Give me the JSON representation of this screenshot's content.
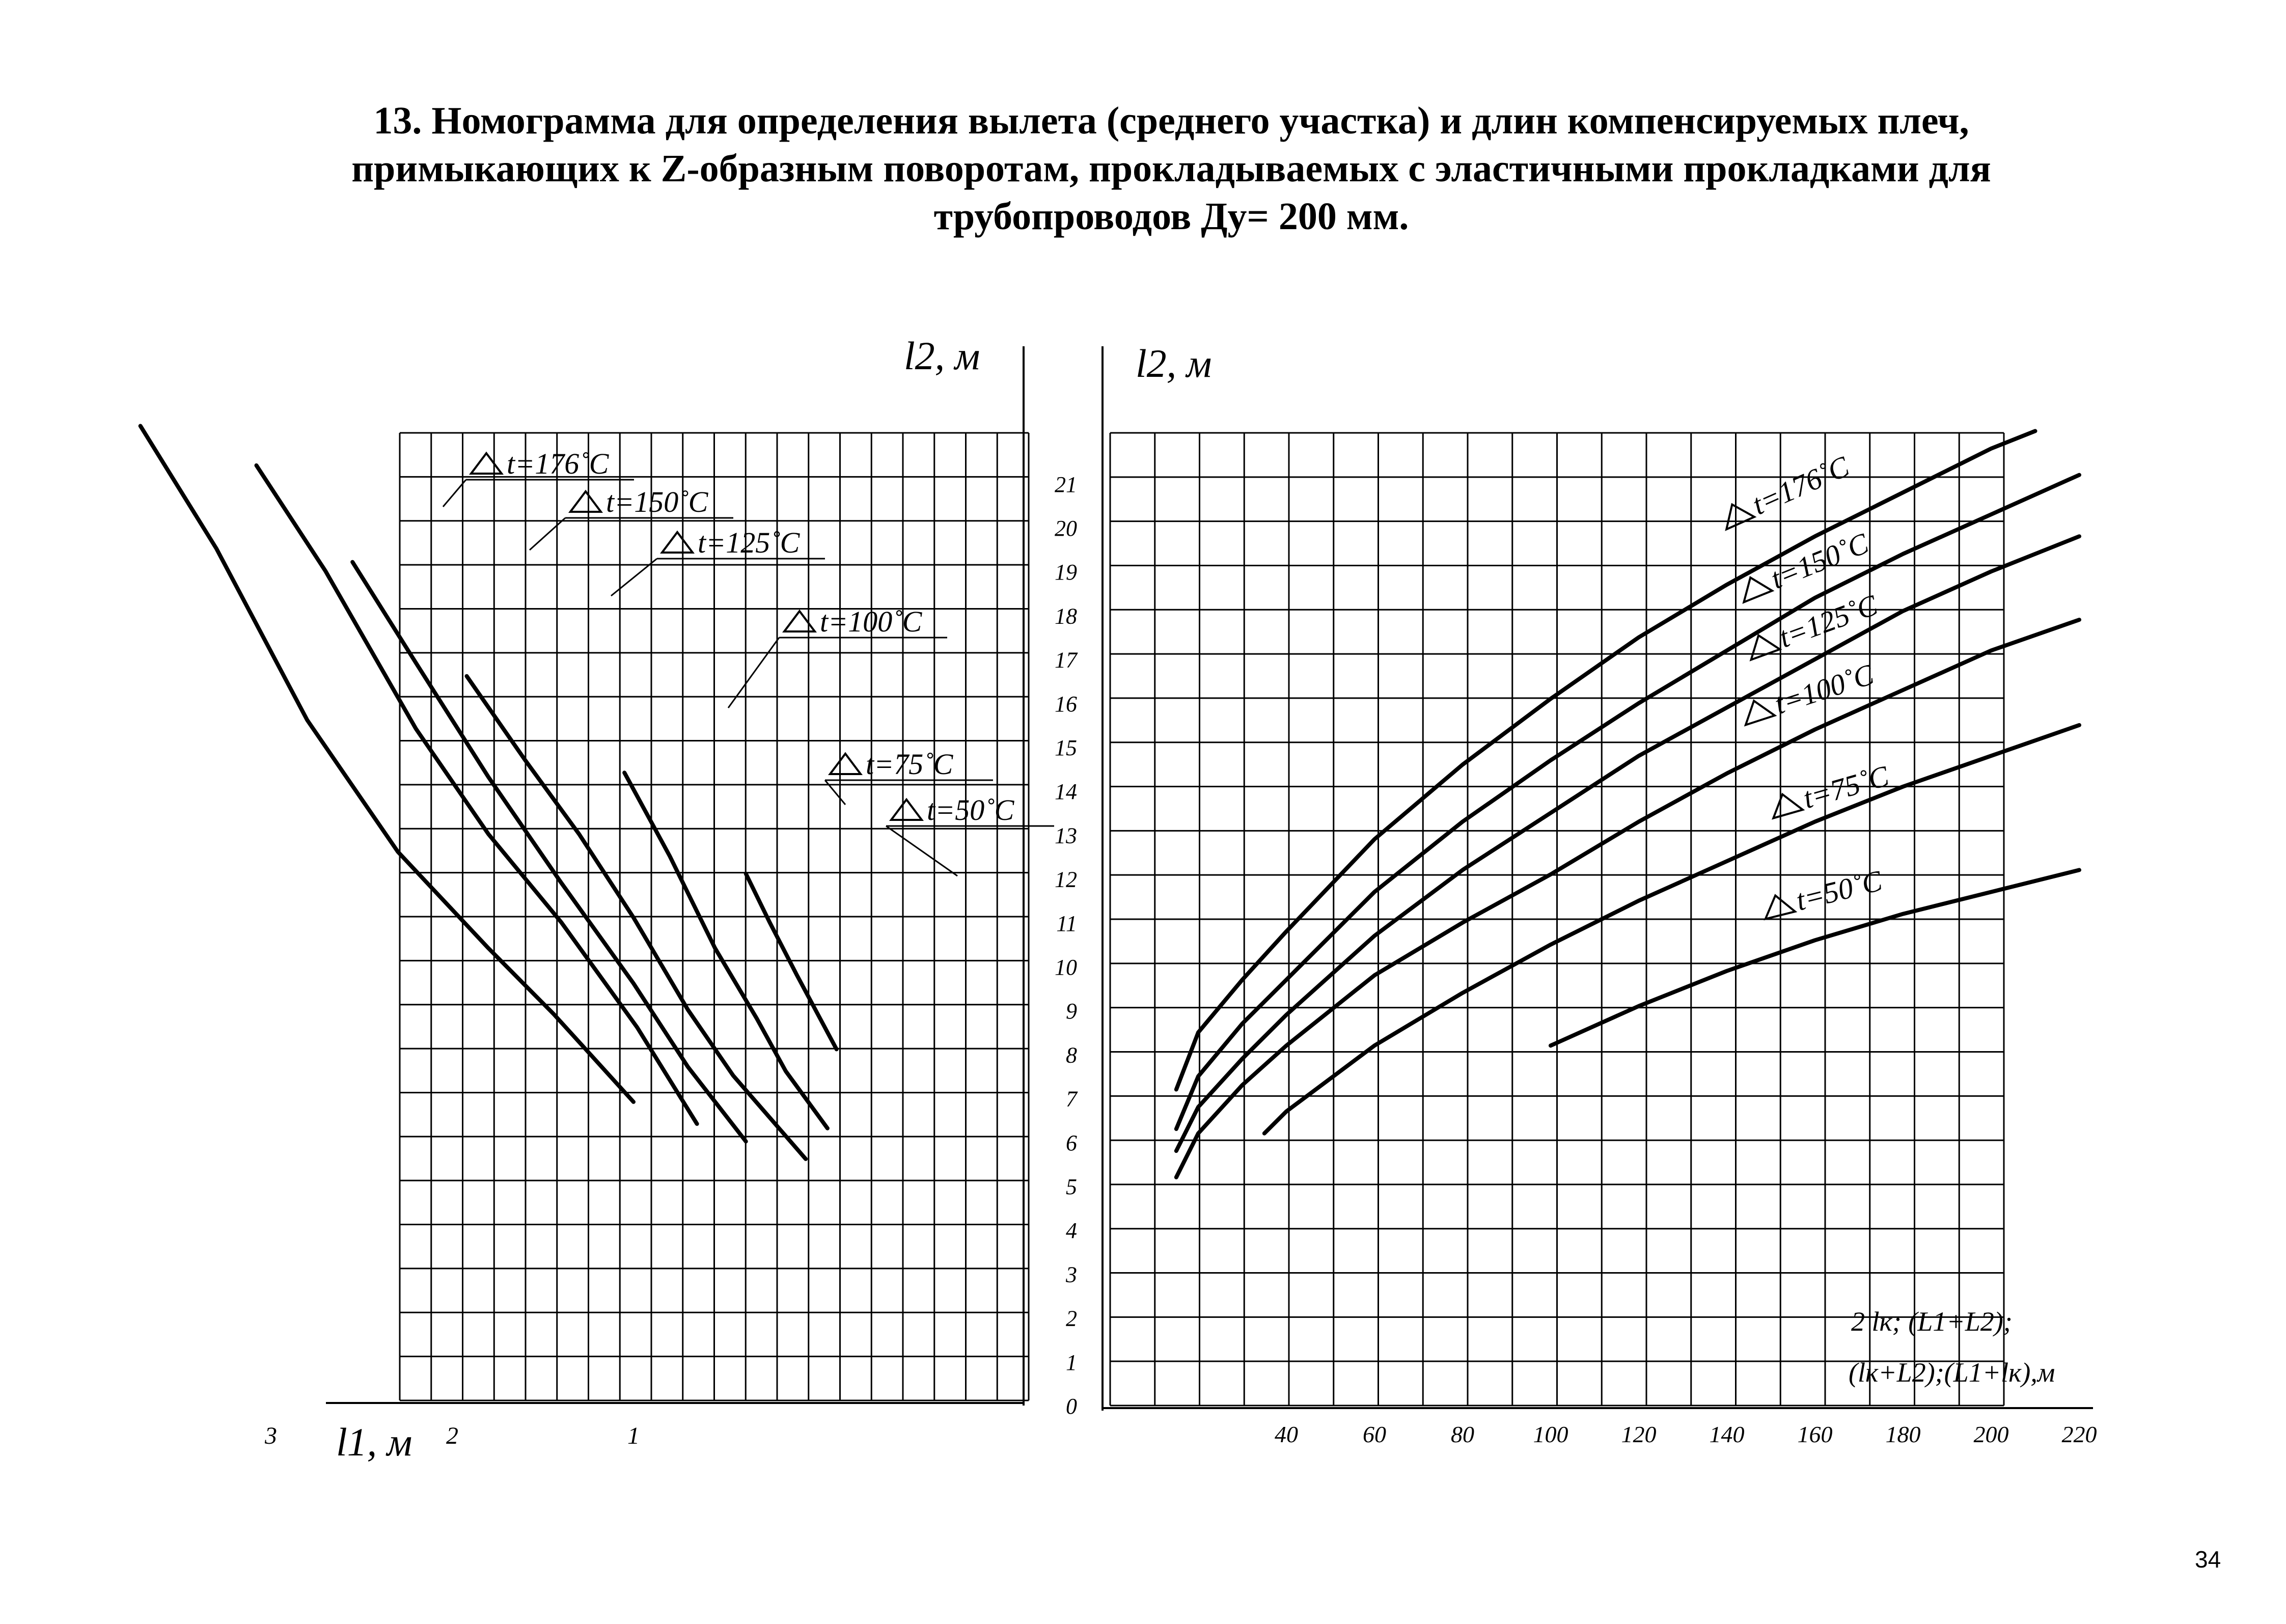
{
  "page": {
    "title_lines": [
      "13. Номограмма  для определения  вылета    (среднего  участка)  и длин компенсируемых плеч,",
      "примыкающих к Z-образным поворотам, прокладываемых с эластичными прокладками для",
      "трубопроводов  Ду= 200 мм."
    ],
    "page_number": "34"
  },
  "chart_data": [
    {
      "type": "line",
      "ylabel": "l2, м",
      "xlabel": "l1, м",
      "x_ticks": [
        "3",
        "2",
        "1"
      ],
      "x_tick_values": [
        3,
        2,
        1
      ],
      "x_direction": "reversed",
      "grid": true,
      "series": [
        {
          "name": "t=176˚C",
          "x": [
            3.72,
            3.3,
            2.8,
            2.3,
            1.8,
            1.44,
            1.0
          ],
          "y": [
            22.2,
            19.4,
            15.5,
            12.5,
            10.3,
            8.8,
            6.8
          ]
        },
        {
          "name": "t=150˚C",
          "x": [
            3.08,
            2.7,
            2.2,
            1.8,
            1.4,
            0.98,
            0.65
          ],
          "y": [
            21.3,
            18.9,
            15.3,
            12.9,
            10.9,
            8.5,
            6.3
          ]
        },
        {
          "name": "t=125˚C",
          "x": [
            2.55,
            2.2,
            1.8,
            1.4,
            1.0,
            0.7,
            0.38
          ],
          "y": [
            19.1,
            16.8,
            14.2,
            11.8,
            9.5,
            7.6,
            5.9
          ]
        },
        {
          "name": "t=100˚C",
          "x": [
            1.92,
            1.6,
            1.3,
            1.0,
            0.7,
            0.45,
            0.05
          ],
          "y": [
            16.5,
            14.6,
            12.9,
            11.0,
            8.9,
            7.4,
            5.5
          ]
        },
        {
          "name": "t=75˚C",
          "x": [
            1.05,
            0.8,
            0.55,
            0.32,
            0.16,
            -0.07
          ],
          "y": [
            14.3,
            12.4,
            10.3,
            8.7,
            7.5,
            6.2
          ]
        },
        {
          "name": "t=50˚C",
          "x": [
            0.38,
            0.25,
            0.1,
            -0.12
          ],
          "y": [
            12.0,
            10.9,
            9.7,
            8.0
          ]
        }
      ]
    },
    {
      "type": "line",
      "ylabel": "l2, м",
      "xlabel": "2 lк; (L1+L2); (lк+L2);(L1+lк),м",
      "xlabel_lines": [
        "2 lк; (L1+L2);",
        "(lк+L2);(L1+lк),м"
      ],
      "y_ticks": [
        "0",
        "1",
        "2",
        "3",
        "4",
        "5",
        "6",
        "7",
        "8",
        "9",
        "10",
        "11",
        "12",
        "13",
        "14",
        "15",
        "16",
        "17",
        "18",
        "19",
        "20",
        "21"
      ],
      "y_tick_values": [
        0,
        1,
        2,
        3,
        4,
        5,
        6,
        7,
        8,
        9,
        10,
        11,
        12,
        13,
        14,
        15,
        16,
        17,
        18,
        19,
        20,
        21
      ],
      "x_ticks": [
        "40",
        "60",
        "80",
        "100",
        "120",
        "140",
        "160",
        "180",
        "200",
        "220"
      ],
      "x_tick_values": [
        40,
        60,
        80,
        100,
        120,
        140,
        160,
        180,
        200,
        220
      ],
      "grid": true,
      "series": [
        {
          "name": "t=176˚C",
          "x": [
            15,
            20,
            30,
            40,
            60,
            80,
            100,
            120,
            140,
            160,
            180,
            200,
            210
          ],
          "y": [
            7.2,
            8.5,
            9.7,
            10.8,
            12.9,
            14.6,
            16.1,
            17.5,
            18.7,
            19.8,
            20.8,
            21.8,
            22.2
          ]
        },
        {
          "name": "t=150˚C",
          "x": [
            15,
            20,
            30,
            40,
            60,
            80,
            100,
            120,
            140,
            160,
            180,
            200,
            220
          ],
          "y": [
            6.3,
            7.5,
            8.7,
            9.7,
            11.7,
            13.3,
            14.7,
            16.0,
            17.2,
            18.4,
            19.4,
            20.3,
            21.2
          ]
        },
        {
          "name": "t=125˚C",
          "x": [
            15,
            20,
            30,
            40,
            60,
            80,
            100,
            120,
            140,
            160,
            180,
            200,
            220
          ],
          "y": [
            5.8,
            6.8,
            7.9,
            8.9,
            10.7,
            12.2,
            13.5,
            14.8,
            15.9,
            17.0,
            18.1,
            19.0,
            19.8
          ]
        },
        {
          "name": "t=100˚C",
          "x": [
            15,
            20,
            30,
            40,
            60,
            80,
            100,
            120,
            140,
            160,
            180,
            200,
            220
          ],
          "y": [
            5.2,
            6.2,
            7.3,
            8.2,
            9.8,
            11.0,
            12.1,
            13.3,
            14.4,
            15.4,
            16.3,
            17.2,
            17.9
          ]
        },
        {
          "name": "t=75˚C",
          "x": [
            35,
            40,
            60,
            80,
            100,
            120,
            140,
            160,
            180,
            200,
            220
          ],
          "y": [
            6.2,
            6.7,
            8.2,
            9.4,
            10.5,
            11.5,
            12.4,
            13.3,
            14.1,
            14.8,
            15.5
          ]
        },
        {
          "name": "t=50˚C",
          "x": [
            100,
            120,
            140,
            160,
            180,
            200,
            220
          ],
          "y": [
            8.2,
            9.1,
            9.9,
            10.6,
            11.2,
            11.7,
            12.2
          ]
        }
      ]
    }
  ]
}
